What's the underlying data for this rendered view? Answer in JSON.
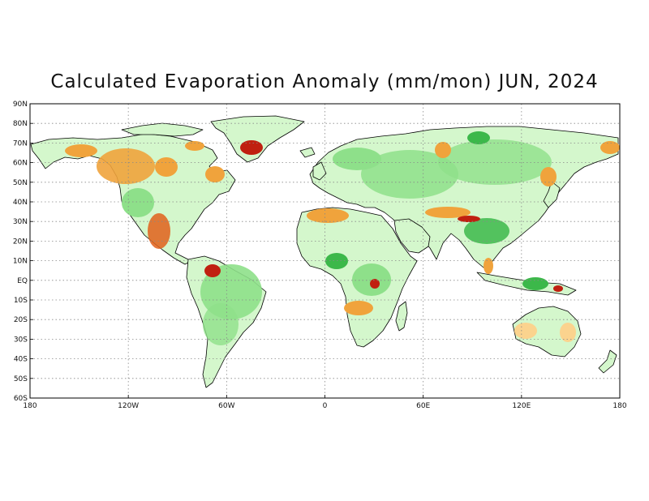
{
  "title": "Calculated Evaporation Anomaly (mm/mon) JUN, 2024",
  "map": {
    "projection": "equirectangular",
    "lon_range": [
      -180,
      180
    ],
    "lat_range": [
      -60,
      90
    ],
    "gridlines": "dotted",
    "lat_ticks": [
      {
        "value": 90,
        "label": "90N"
      },
      {
        "value": 80,
        "label": "80N"
      },
      {
        "value": 70,
        "label": "70N"
      },
      {
        "value": 60,
        "label": "60N"
      },
      {
        "value": 50,
        "label": "50N"
      },
      {
        "value": 40,
        "label": "40N"
      },
      {
        "value": 30,
        "label": "30N"
      },
      {
        "value": 20,
        "label": "20N"
      },
      {
        "value": 10,
        "label": "10N"
      },
      {
        "value": 0,
        "label": "EQ"
      },
      {
        "value": -10,
        "label": "10S"
      },
      {
        "value": -20,
        "label": "20S"
      },
      {
        "value": -30,
        "label": "30S"
      },
      {
        "value": -40,
        "label": "40S"
      },
      {
        "value": -50,
        "label": "50S"
      },
      {
        "value": -60,
        "label": "60S"
      }
    ],
    "lon_ticks": [
      {
        "value": -180,
        "label": "180"
      },
      {
        "value": -120,
        "label": "120W"
      },
      {
        "value": -60,
        "label": "60W"
      },
      {
        "value": 0,
        "label": "0"
      },
      {
        "value": 60,
        "label": "60E"
      },
      {
        "value": 120,
        "label": "120E"
      },
      {
        "value": 180,
        "label": "180"
      }
    ],
    "colors": {
      "positive_light": "#c8f5c0",
      "positive": "#8ee08a",
      "positive_strong": "#3cb84a",
      "positive_dark": "#1e8c2e",
      "negative_light": "#fbd38e",
      "negative": "#f0a33c",
      "negative_strong": "#e0601a",
      "negative_dark": "#c02010",
      "coastline": "#000000",
      "grid": "#888888"
    }
  }
}
